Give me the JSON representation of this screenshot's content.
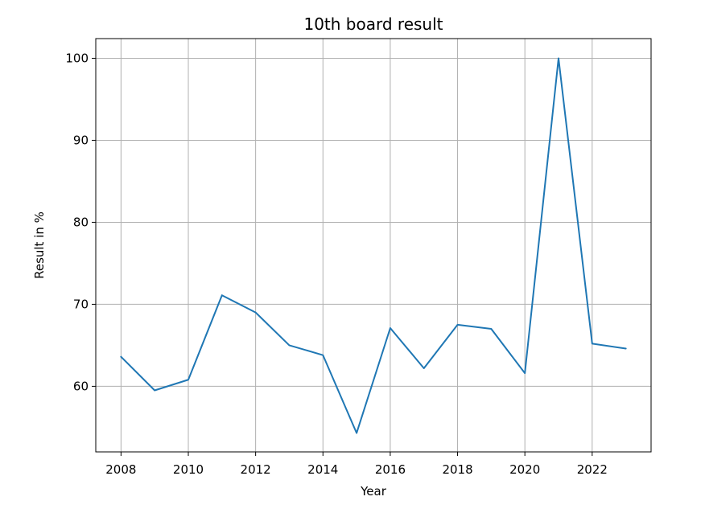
{
  "chart_data": {
    "type": "line",
    "title": "10th board result",
    "xlabel": "Year",
    "ylabel": "Result in %",
    "xlim": [
      2007.25,
      2023.75
    ],
    "ylim": [
      52.0,
      102.4
    ],
    "x_ticks": [
      2008,
      2010,
      2012,
      2014,
      2016,
      2018,
      2020,
      2022
    ],
    "x_tick_labels": [
      "2008",
      "2010",
      "2012",
      "2014",
      "2016",
      "2018",
      "2020",
      "2022"
    ],
    "y_ticks": [
      60,
      70,
      80,
      90,
      100
    ],
    "y_tick_labels": [
      "60",
      "70",
      "80",
      "90",
      "100"
    ],
    "grid": true,
    "series": [
      {
        "color": "#1f77b4",
        "x": [
          2008,
          2009,
          2010,
          2011,
          2012,
          2013,
          2014,
          2015,
          2016,
          2017,
          2018,
          2019,
          2020,
          2021,
          2022,
          2023
        ],
        "values": [
          63.6,
          59.5,
          60.8,
          71.1,
          69.0,
          65.0,
          63.8,
          54.3,
          67.1,
          62.2,
          67.5,
          67.0,
          61.6,
          100.0,
          65.2,
          64.6
        ]
      }
    ]
  }
}
